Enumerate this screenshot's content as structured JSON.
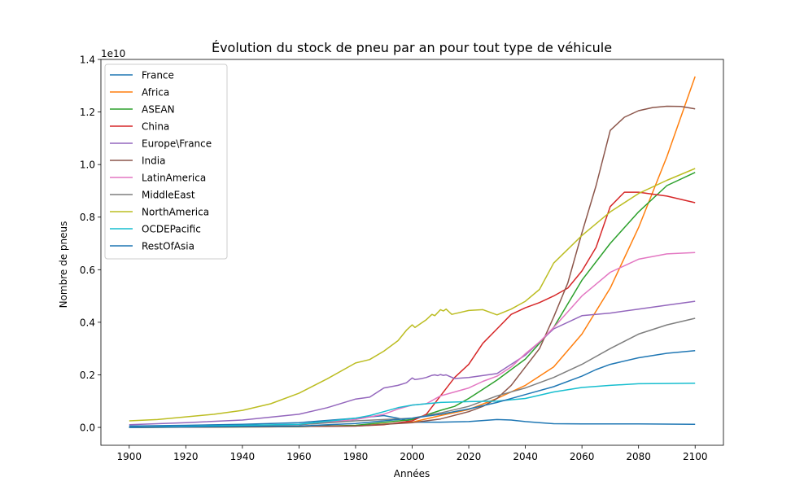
{
  "chart_data": {
    "type": "line",
    "title": "Évolution du stock de pneu par an pour tout type de véhicule",
    "xlabel": "Années",
    "ylabel": "Nombre de pneus",
    "y_offset_label": "1e10",
    "y_scale": 10000000000,
    "xlim": [
      1890,
      2110
    ],
    "ylim": [
      -0.068,
      1.4
    ],
    "x_ticks": [
      1900,
      1920,
      1940,
      1960,
      1980,
      2000,
      2020,
      2040,
      2060,
      2080,
      2100
    ],
    "y_ticks": [
      0.0,
      0.2,
      0.4,
      0.6,
      0.8,
      1.0,
      1.2,
      1.4
    ],
    "y_tick_labels": [
      "0.0",
      "0.2",
      "0.4",
      "0.6",
      "0.8",
      "1.0",
      "1.2",
      "1.4"
    ],
    "grid": false,
    "legend_position": "top-left",
    "series": [
      {
        "name": "France",
        "color": "#1f77b4",
        "points": [
          [
            1900,
            0.005
          ],
          [
            1920,
            0.008
          ],
          [
            1940,
            0.012
          ],
          [
            1960,
            0.018
          ],
          [
            1980,
            0.035
          ],
          [
            1990,
            0.045
          ],
          [
            1995,
            0.035
          ],
          [
            2000,
            0.02
          ],
          [
            2010,
            0.02
          ],
          [
            2020,
            0.022
          ],
          [
            2030,
            0.03
          ],
          [
            2035,
            0.028
          ],
          [
            2040,
            0.022
          ],
          [
            2045,
            0.018
          ],
          [
            2050,
            0.014
          ],
          [
            2060,
            0.013
          ],
          [
            2080,
            0.013
          ],
          [
            2100,
            0.012
          ]
        ]
      },
      {
        "name": "Africa",
        "color": "#ff7f0e",
        "points": [
          [
            1900,
            0.0
          ],
          [
            1950,
            0.002
          ],
          [
            1980,
            0.006
          ],
          [
            2000,
            0.02
          ],
          [
            2010,
            0.045
          ],
          [
            2020,
            0.068
          ],
          [
            2030,
            0.11
          ],
          [
            2040,
            0.16
          ],
          [
            2050,
            0.23
          ],
          [
            2060,
            0.355
          ],
          [
            2070,
            0.53
          ],
          [
            2080,
            0.76
          ],
          [
            2090,
            1.03
          ],
          [
            2100,
            1.335
          ]
        ]
      },
      {
        "name": "ASEAN",
        "color": "#2ca02c",
        "points": [
          [
            1900,
            0.0
          ],
          [
            1960,
            0.003
          ],
          [
            1980,
            0.008
          ],
          [
            2000,
            0.03
          ],
          [
            2010,
            0.065
          ],
          [
            2015,
            0.08
          ],
          [
            2020,
            0.11
          ],
          [
            2025,
            0.145
          ],
          [
            2030,
            0.18
          ],
          [
            2040,
            0.26
          ],
          [
            2050,
            0.38
          ],
          [
            2060,
            0.56
          ],
          [
            2070,
            0.7
          ],
          [
            2080,
            0.82
          ],
          [
            2090,
            0.92
          ],
          [
            2100,
            0.97
          ]
        ]
      },
      {
        "name": "China",
        "color": "#d62728",
        "points": [
          [
            1900,
            0.0
          ],
          [
            1980,
            0.005
          ],
          [
            1990,
            0.01
          ],
          [
            2000,
            0.025
          ],
          [
            2005,
            0.05
          ],
          [
            2010,
            0.12
          ],
          [
            2015,
            0.19
          ],
          [
            2020,
            0.24
          ],
          [
            2025,
            0.32
          ],
          [
            2030,
            0.375
          ],
          [
            2035,
            0.43
          ],
          [
            2040,
            0.455
          ],
          [
            2045,
            0.475
          ],
          [
            2050,
            0.5
          ],
          [
            2055,
            0.53
          ],
          [
            2060,
            0.595
          ],
          [
            2065,
            0.685
          ],
          [
            2070,
            0.84
          ],
          [
            2075,
            0.895
          ],
          [
            2080,
            0.895
          ],
          [
            2090,
            0.88
          ],
          [
            2100,
            0.855
          ]
        ]
      },
      {
        "name": "Europe\\France",
        "color": "#9467bd",
        "points": [
          [
            1900,
            0.01
          ],
          [
            1920,
            0.018
          ],
          [
            1940,
            0.028
          ],
          [
            1960,
            0.05
          ],
          [
            1970,
            0.075
          ],
          [
            1980,
            0.108
          ],
          [
            1985,
            0.115
          ],
          [
            1990,
            0.15
          ],
          [
            1995,
            0.16
          ],
          [
            1998,
            0.17
          ],
          [
            2000,
            0.188
          ],
          [
            2001,
            0.182
          ],
          [
            2003,
            0.185
          ],
          [
            2005,
            0.19
          ],
          [
            2007,
            0.198
          ],
          [
            2008,
            0.2
          ],
          [
            2009,
            0.197
          ],
          [
            2010,
            0.201
          ],
          [
            2011,
            0.198
          ],
          [
            2012,
            0.2
          ],
          [
            2013,
            0.195
          ],
          [
            2015,
            0.186
          ],
          [
            2020,
            0.19
          ],
          [
            2030,
            0.205
          ],
          [
            2040,
            0.275
          ],
          [
            2050,
            0.375
          ],
          [
            2060,
            0.425
          ],
          [
            2070,
            0.435
          ],
          [
            2080,
            0.45
          ],
          [
            2090,
            0.465
          ],
          [
            2100,
            0.48
          ]
        ]
      },
      {
        "name": "India",
        "color": "#8c564b",
        "points": [
          [
            1900,
            0.0
          ],
          [
            1980,
            0.005
          ],
          [
            2000,
            0.018
          ],
          [
            2010,
            0.032
          ],
          [
            2020,
            0.06
          ],
          [
            2025,
            0.08
          ],
          [
            2030,
            0.11
          ],
          [
            2035,
            0.16
          ],
          [
            2040,
            0.23
          ],
          [
            2045,
            0.3
          ],
          [
            2050,
            0.42
          ],
          [
            2055,
            0.55
          ],
          [
            2060,
            0.74
          ],
          [
            2065,
            0.92
          ],
          [
            2070,
            1.13
          ],
          [
            2075,
            1.18
          ],
          [
            2080,
            1.205
          ],
          [
            2085,
            1.217
          ],
          [
            2090,
            1.222
          ],
          [
            2095,
            1.221
          ],
          [
            2100,
            1.212
          ]
        ]
      },
      {
        "name": "LatinAmerica",
        "color": "#e377c2",
        "points": [
          [
            1900,
            0.0
          ],
          [
            1960,
            0.01
          ],
          [
            1980,
            0.03
          ],
          [
            1990,
            0.05
          ],
          [
            1995,
            0.07
          ],
          [
            2000,
            0.085
          ],
          [
            2005,
            0.09
          ],
          [
            2010,
            0.12
          ],
          [
            2015,
            0.135
          ],
          [
            2020,
            0.15
          ],
          [
            2025,
            0.175
          ],
          [
            2030,
            0.195
          ],
          [
            2035,
            0.23
          ],
          [
            2040,
            0.28
          ],
          [
            2045,
            0.325
          ],
          [
            2050,
            0.38
          ],
          [
            2055,
            0.44
          ],
          [
            2060,
            0.5
          ],
          [
            2065,
            0.545
          ],
          [
            2070,
            0.59
          ],
          [
            2080,
            0.64
          ],
          [
            2090,
            0.66
          ],
          [
            2100,
            0.665
          ]
        ]
      },
      {
        "name": "MiddleEast",
        "color": "#7f7f7f",
        "points": [
          [
            1900,
            0.0
          ],
          [
            1960,
            0.01
          ],
          [
            1980,
            0.025
          ],
          [
            1990,
            0.03
          ],
          [
            2000,
            0.035
          ],
          [
            2010,
            0.055
          ],
          [
            2020,
            0.08
          ],
          [
            2030,
            0.12
          ],
          [
            2040,
            0.15
          ],
          [
            2050,
            0.19
          ],
          [
            2060,
            0.24
          ],
          [
            2070,
            0.3
          ],
          [
            2080,
            0.355
          ],
          [
            2090,
            0.39
          ],
          [
            2100,
            0.415
          ]
        ]
      },
      {
        "name": "NorthAmerica",
        "color": "#bcbd22",
        "points": [
          [
            1900,
            0.025
          ],
          [
            1910,
            0.03
          ],
          [
            1920,
            0.04
          ],
          [
            1930,
            0.05
          ],
          [
            1940,
            0.065
          ],
          [
            1950,
            0.09
          ],
          [
            1960,
            0.13
          ],
          [
            1970,
            0.185
          ],
          [
            1980,
            0.245
          ],
          [
            1985,
            0.258
          ],
          [
            1990,
            0.29
          ],
          [
            1995,
            0.33
          ],
          [
            1998,
            0.37
          ],
          [
            2000,
            0.39
          ],
          [
            2001,
            0.38
          ],
          [
            2003,
            0.395
          ],
          [
            2005,
            0.41
          ],
          [
            2007,
            0.43
          ],
          [
            2008,
            0.425
          ],
          [
            2010,
            0.448
          ],
          [
            2011,
            0.443
          ],
          [
            2012,
            0.45
          ],
          [
            2013,
            0.44
          ],
          [
            2014,
            0.43
          ],
          [
            2020,
            0.445
          ],
          [
            2025,
            0.448
          ],
          [
            2030,
            0.428
          ],
          [
            2035,
            0.45
          ],
          [
            2040,
            0.48
          ],
          [
            2045,
            0.525
          ],
          [
            2050,
            0.625
          ],
          [
            2060,
            0.73
          ],
          [
            2070,
            0.82
          ],
          [
            2080,
            0.89
          ],
          [
            2090,
            0.94
          ],
          [
            2100,
            0.985
          ]
        ]
      },
      {
        "name": "OCDEPacific",
        "color": "#17becf",
        "points": [
          [
            1900,
            0.0
          ],
          [
            1960,
            0.012
          ],
          [
            1980,
            0.035
          ],
          [
            1985,
            0.045
          ],
          [
            1990,
            0.06
          ],
          [
            1995,
            0.075
          ],
          [
            2000,
            0.085
          ],
          [
            2005,
            0.09
          ],
          [
            2010,
            0.095
          ],
          [
            2020,
            0.098
          ],
          [
            2030,
            0.1
          ],
          [
            2040,
            0.11
          ],
          [
            2050,
            0.135
          ],
          [
            2060,
            0.152
          ],
          [
            2070,
            0.16
          ],
          [
            2080,
            0.166
          ],
          [
            2090,
            0.167
          ],
          [
            2100,
            0.168
          ]
        ]
      },
      {
        "name": "RestOfAsia",
        "color": "#1f77b4",
        "points": [
          [
            1900,
            0.0
          ],
          [
            1960,
            0.005
          ],
          [
            1980,
            0.015
          ],
          [
            2000,
            0.035
          ],
          [
            2010,
            0.05
          ],
          [
            2020,
            0.07
          ],
          [
            2030,
            0.095
          ],
          [
            2040,
            0.125
          ],
          [
            2050,
            0.155
          ],
          [
            2060,
            0.195
          ],
          [
            2065,
            0.22
          ],
          [
            2070,
            0.24
          ],
          [
            2080,
            0.265
          ],
          [
            2090,
            0.282
          ],
          [
            2100,
            0.292
          ]
        ]
      }
    ]
  }
}
